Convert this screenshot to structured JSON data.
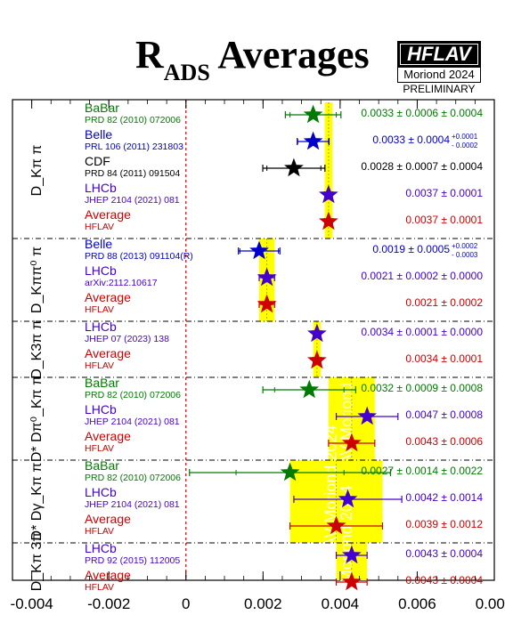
{
  "header": {
    "title_main": "R",
    "title_sub": "ADS",
    "title_rest": " Averages",
    "logo_text": "HFLAV",
    "logo_sub": "Moriond 2024",
    "logo_tag": "PRELIMINARY"
  },
  "colors": {
    "babar": "#007a00",
    "belle": "#0000cc",
    "cdf": "#000000",
    "lhcb": "#4400cc",
    "average": "#cc0000",
    "band": "#ffff00",
    "zero_line": "#cc0000"
  },
  "chart_data": {
    "type": "scatter",
    "xlim": [
      -0.0045,
      0.008
    ],
    "x_ticks": [
      "-0.004",
      "-0.002",
      "0",
      "0.002",
      "0.004",
      "0.006",
      "0.008"
    ],
    "x_tick_values": [
      -0.004,
      -0.002,
      0,
      0.002,
      0.004,
      0.006,
      0.008
    ],
    "band_text": "HFLAV Moriond 2024",
    "groups": [
      {
        "label": "D_Kπ π",
        "average": {
          "value": 0.0037,
          "err": 0.0001
        },
        "entries": [
          {
            "exp": "BaBar",
            "ref": "PRD 82 (2010) 072006",
            "kind": "babar",
            "value": 0.0033,
            "stat": 0.0006,
            "syst": 0.0004,
            "text": "0.0033 ± 0.0006 ± 0.0004",
            "sup": "",
            "sub": ""
          },
          {
            "exp": "Belle",
            "ref": "PRL 106 (2011) 231803",
            "kind": "belle",
            "value": 0.0033,
            "stat": 0.0004,
            "syst": 0.0001,
            "text": "0.0033 ± 0.0004 ",
            "sup": "+0.0001",
            "sub": "- 0.0002"
          },
          {
            "exp": "CDF",
            "ref": "PRD 84 (2011) 091504",
            "kind": "cdf",
            "value": 0.0028,
            "stat": 0.0007,
            "syst": 0.0004,
            "text": "0.0028 ± 0.0007 ± 0.0004",
            "sup": "",
            "sub": ""
          },
          {
            "exp": "LHCb",
            "ref": "JHEP 2104 (2021) 081",
            "kind": "lhcb",
            "value": 0.0037,
            "stat": 0.0001,
            "syst": 0.0,
            "text": "0.0037 ± 0.0001",
            "sup": "",
            "sub": ""
          },
          {
            "exp": "Average",
            "ref": "HFLAV",
            "kind": "average",
            "value": 0.0037,
            "stat": 0.0001,
            "syst": 0.0,
            "text": "0.0037 ± 0.0001",
            "sup": "",
            "sub": ""
          }
        ]
      },
      {
        "label": "D_Kππ⁰ π",
        "average": {
          "value": 0.0021,
          "err": 0.0002
        },
        "entries": [
          {
            "exp": "Belle",
            "ref": "PRD 88 (2013) 091104(R)",
            "kind": "belle",
            "value": 0.0019,
            "stat": 0.0005,
            "syst": 0.0002,
            "text": "0.0019 ± 0.0005 ",
            "sup": "+0.0002",
            "sub": "- 0.0003"
          },
          {
            "exp": "LHCb",
            "ref": "arXiv:2112.10617",
            "kind": "lhcb",
            "value": 0.0021,
            "stat": 0.0002,
            "syst": 0.0,
            "text": "0.0021 ± 0.0002 ± 0.0000",
            "sup": "",
            "sub": ""
          },
          {
            "exp": "Average",
            "ref": "HFLAV",
            "kind": "average",
            "value": 0.0021,
            "stat": 0.0002,
            "syst": 0.0,
            "text": "0.0021 ± 0.0002",
            "sup": "",
            "sub": ""
          }
        ]
      },
      {
        "label": "D_K3π π",
        "average": {
          "value": 0.0034,
          "err": 0.0001
        },
        "entries": [
          {
            "exp": "LHCb",
            "ref": "JHEP 07 (2023) 138",
            "kind": "lhcb",
            "value": 0.0034,
            "stat": 0.0001,
            "syst": 0.0,
            "text": "0.0034 ± 0.0001 ± 0.0000",
            "sup": "",
            "sub": ""
          },
          {
            "exp": "Average",
            "ref": "HFLAV",
            "kind": "average",
            "value": 0.0034,
            "stat": 0.0001,
            "syst": 0.0,
            "text": "0.0034 ± 0.0001",
            "sup": "",
            "sub": ""
          }
        ]
      },
      {
        "label": "D* Dπ⁰_Kπ π",
        "average": {
          "value": 0.0043,
          "err": 0.0006
        },
        "entries": [
          {
            "exp": "BaBar",
            "ref": "PRD 82 (2010) 072006",
            "kind": "babar",
            "value": 0.0032,
            "stat": 0.0009,
            "syst": 0.0008,
            "text": "0.0032 ± 0.0009 ± 0.0008",
            "sup": "",
            "sub": ""
          },
          {
            "exp": "LHCb",
            "ref": "JHEP 2104 (2021) 081",
            "kind": "lhcb",
            "value": 0.0047,
            "stat": 0.0008,
            "syst": 0.0,
            "text": "0.0047 ± 0.0008",
            "sup": "",
            "sub": ""
          },
          {
            "exp": "Average",
            "ref": "HFLAV",
            "kind": "average",
            "value": 0.0043,
            "stat": 0.0006,
            "syst": 0.0,
            "text": "0.0043 ± 0.0006",
            "sup": "",
            "sub": ""
          }
        ]
      },
      {
        "label": "D* Dγ_Kπ π",
        "average": {
          "value": 0.0039,
          "err": 0.0012
        },
        "entries": [
          {
            "exp": "BaBar",
            "ref": "PRD 82 (2010) 072006",
            "kind": "babar",
            "value": 0.0027,
            "stat": 0.0014,
            "syst": 0.0022,
            "text": "0.0027 ± 0.0014 ± 0.0022",
            "sup": "",
            "sub": ""
          },
          {
            "exp": "LHCb",
            "ref": "JHEP 2104 (2021) 081",
            "kind": "lhcb",
            "value": 0.0042,
            "stat": 0.0014,
            "syst": 0.0,
            "text": "0.0042 ± 0.0014",
            "sup": "",
            "sub": ""
          },
          {
            "exp": "Average",
            "ref": "HFLAV",
            "kind": "average",
            "value": 0.0039,
            "stat": 0.0012,
            "syst": 0.0,
            "text": "0.0039 ± 0.0012",
            "sup": "",
            "sub": ""
          }
        ]
      },
      {
        "label": "D_Kπ 3π",
        "average": {
          "value": 0.0043,
          "err": 0.0004
        },
        "entries": [
          {
            "exp": "LHCb",
            "ref": "PRD 92 (2015) 112005",
            "kind": "lhcb",
            "value": 0.0043,
            "stat": 0.0004,
            "syst": 0.0,
            "text": "0.0043 ± 0.0004",
            "sup": "",
            "sub": ""
          },
          {
            "exp": "Average",
            "ref": "HFLAV",
            "kind": "average",
            "value": 0.0043,
            "stat": 0.0004,
            "syst": 0.0,
            "text": "0.0043 ± 0.0004",
            "sup": "",
            "sub": ""
          }
        ]
      }
    ]
  }
}
